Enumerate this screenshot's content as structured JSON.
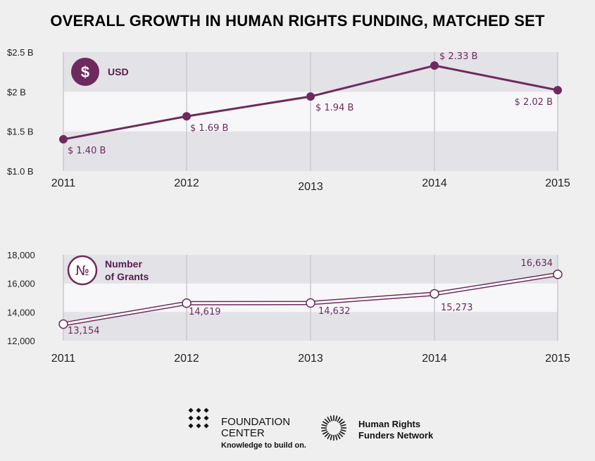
{
  "title": "OVERALL GROWTH IN HUMAN RIGHTS FUNDING, MATCHED SET",
  "colors": {
    "accent": "#6e2a5e",
    "band": "#e2e2e7",
    "plot_bg": "#f7f7f9",
    "grid": "#c9c9cf"
  },
  "chart_data": [
    {
      "type": "line",
      "badge_icon": "dollar-icon",
      "badge_symbol": "$",
      "badge_label": "USD",
      "categories": [
        "2011",
        "2012",
        "2013",
        "2014",
        "2015"
      ],
      "values": [
        1.4,
        1.69,
        1.94,
        2.33,
        2.02
      ],
      "value_labels": [
        "$ 1.40 B",
        "$ 1.69 B",
        "$ 1.94 B",
        "$ 2.33 B",
        "$ 2.02 B"
      ],
      "yticks": [
        1.0,
        1.5,
        2.0,
        2.5
      ],
      "ytick_labels": [
        "$1.0 B",
        "$1.5 B",
        "$2 B",
        "$2.5 B"
      ],
      "ylim": [
        1.0,
        2.5
      ],
      "grid": true
    },
    {
      "type": "line",
      "badge_icon": "numero-icon",
      "badge_symbol": "№",
      "badge_label": [
        "Number",
        "of Grants"
      ],
      "categories": [
        "2011",
        "2012",
        "2013",
        "2014",
        "2015"
      ],
      "values": [
        13154,
        14619,
        14632,
        15273,
        16634
      ],
      "value_labels": [
        "13,154",
        "14,619",
        "14,632",
        "15,273",
        "16,634"
      ],
      "yticks": [
        12000,
        14000,
        16000,
        18000
      ],
      "ytick_labels": [
        "12,000",
        "14,000",
        "16,000",
        "18,000"
      ],
      "ylim": [
        12000,
        18000
      ],
      "grid": true
    }
  ],
  "logos": {
    "foundation_center": {
      "line1": "FOUNDATION",
      "line2": "CENTER",
      "tagline": "Knowledge to build on."
    },
    "hrfn": {
      "line1": "Human Rights",
      "line2": "Funders Network"
    }
  }
}
